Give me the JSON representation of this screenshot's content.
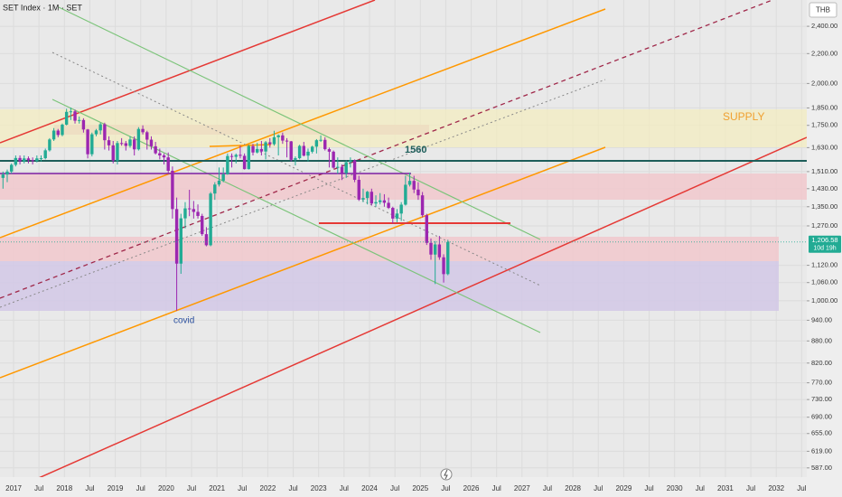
{
  "chart_data": {
    "type": "candlestick",
    "title": "SET Index · 1M · SET",
    "currency": "THB",
    "log_scale": true,
    "grid": true,
    "up_color": "#22ab94",
    "down_color": "#9c27b0",
    "x": [
      "2016-10",
      "2016-11",
      "2016-12",
      "2017-01",
      "2017-02",
      "2017-03",
      "2017-04",
      "2017-05",
      "2017-06",
      "2017-07",
      "2017-08",
      "2017-09",
      "2017-10",
      "2017-11",
      "2017-12",
      "2018-01",
      "2018-02",
      "2018-03",
      "2018-04",
      "2018-05",
      "2018-06",
      "2018-07",
      "2018-08",
      "2018-09",
      "2018-10",
      "2018-11",
      "2018-12",
      "2019-01",
      "2019-02",
      "2019-03",
      "2019-04",
      "2019-05",
      "2019-06",
      "2019-07",
      "2019-08",
      "2019-09",
      "2019-10",
      "2019-11",
      "2019-12",
      "2020-01",
      "2020-02",
      "2020-03",
      "2020-04",
      "2020-05",
      "2020-06",
      "2020-07",
      "2020-08",
      "2020-09",
      "2020-10",
      "2020-11",
      "2020-12",
      "2021-01",
      "2021-02",
      "2021-03",
      "2021-04",
      "2021-05",
      "2021-06",
      "2021-07",
      "2021-08",
      "2021-09",
      "2021-10",
      "2021-11",
      "2021-12",
      "2022-01",
      "2022-02",
      "2022-03",
      "2022-04",
      "2022-05",
      "2022-06",
      "2022-07",
      "2022-08",
      "2022-09",
      "2022-10",
      "2022-11",
      "2022-12",
      "2023-01",
      "2023-02",
      "2023-03",
      "2023-04",
      "2023-05",
      "2023-06",
      "2023-07",
      "2023-08",
      "2023-09",
      "2023-10",
      "2023-11",
      "2023-12",
      "2024-01",
      "2024-02",
      "2024-03",
      "2024-04",
      "2024-05",
      "2024-06",
      "2024-07",
      "2024-08",
      "2024-09",
      "2024-10",
      "2024-11",
      "2024-12",
      "2025-01",
      "2025-02",
      "2025-03",
      "2025-04",
      "2025-05",
      "2025-06",
      "2025-07"
    ],
    "open": [
      1480,
      1496,
      1510,
      1543,
      1577,
      1560,
      1575,
      1566,
      1562,
      1575,
      1576,
      1616,
      1673,
      1721,
      1697,
      1754,
      1827,
      1830,
      1776,
      1780,
      1727,
      1596,
      1701,
      1722,
      1756,
      1669,
      1642,
      1564,
      1654,
      1653,
      1639,
      1673,
      1621,
      1730,
      1712,
      1672,
      1637,
      1601,
      1590,
      1580,
      1514,
      1340,
      1126,
      1301,
      1343,
      1340,
      1328,
      1311,
      1237,
      1194,
      1408,
      1449,
      1467,
      1497,
      1587,
      1583,
      1593,
      1588,
      1522,
      1638,
      1605,
      1623,
      1610,
      1658,
      1648,
      1685,
      1695,
      1667,
      1663,
      1568,
      1576,
      1639,
      1589,
      1609,
      1635,
      1669,
      1671,
      1622,
      1609,
      1529,
      1533,
      1503,
      1556,
      1565,
      1471,
      1381,
      1388,
      1416,
      1364,
      1370,
      1378,
      1367,
      1345,
      1300,
      1321,
      1359,
      1448,
      1466,
      1426,
      1400,
      1314,
      1203,
      1159,
      1197,
      1149,
      1089
    ],
    "high": [
      1510,
      1520,
      1550,
      1590,
      1590,
      1590,
      1585,
      1580,
      1590,
      1590,
      1625,
      1680,
      1735,
      1730,
      1760,
      1845,
      1852,
      1840,
      1800,
      1790,
      1730,
      1710,
      1730,
      1765,
      1765,
      1690,
      1665,
      1665,
      1680,
      1665,
      1690,
      1690,
      1740,
      1750,
      1720,
      1690,
      1660,
      1625,
      1600,
      1605,
      1535,
      1390,
      1320,
      1370,
      1425,
      1375,
      1360,
      1320,
      1265,
      1415,
      1460,
      1530,
      1530,
      1600,
      1600,
      1600,
      1640,
      1600,
      1645,
      1650,
      1655,
      1665,
      1665,
      1680,
      1720,
      1700,
      1710,
      1680,
      1665,
      1585,
      1645,
      1660,
      1625,
      1640,
      1675,
      1695,
      1685,
      1630,
      1615,
      1580,
      1545,
      1565,
      1580,
      1570,
      1490,
      1430,
      1420,
      1430,
      1400,
      1410,
      1405,
      1390,
      1350,
      1340,
      1370,
      1490,
      1505,
      1490,
      1460,
      1415,
      1320,
      1220,
      1210,
      1230,
      1160,
      1215
    ],
    "low": [
      1430,
      1460,
      1500,
      1535,
      1545,
      1550,
      1550,
      1545,
      1555,
      1560,
      1570,
      1610,
      1665,
      1685,
      1690,
      1750,
      1780,
      1760,
      1760,
      1710,
      1575,
      1585,
      1690,
      1700,
      1620,
      1615,
      1550,
      1545,
      1640,
      1615,
      1630,
      1590,
      1615,
      1700,
      1620,
      1620,
      1595,
      1570,
      1545,
      1500,
      1300,
      969,
      1090,
      1260,
      1310,
      1300,
      1300,
      1230,
      1190,
      1190,
      1380,
      1440,
      1460,
      1495,
      1530,
      1550,
      1575,
      1520,
      1520,
      1590,
      1600,
      1590,
      1570,
      1630,
      1640,
      1590,
      1650,
      1580,
      1560,
      1540,
      1570,
      1585,
      1560,
      1600,
      1600,
      1660,
      1615,
      1530,
      1525,
      1500,
      1470,
      1480,
      1530,
      1460,
      1375,
      1370,
      1360,
      1355,
      1350,
      1360,
      1350,
      1340,
      1280,
      1285,
      1290,
      1355,
      1440,
      1410,
      1380,
      1305,
      1195,
      1140,
      1055,
      1140,
      1060,
      1085
    ],
    "close": [
      1496,
      1510,
      1543,
      1577,
      1560,
      1575,
      1566,
      1562,
      1575,
      1576,
      1616,
      1673,
      1721,
      1697,
      1754,
      1827,
      1830,
      1776,
      1780,
      1727,
      1596,
      1701,
      1722,
      1756,
      1669,
      1642,
      1564,
      1654,
      1653,
      1639,
      1673,
      1621,
      1730,
      1712,
      1672,
      1637,
      1601,
      1590,
      1580,
      1514,
      1340,
      1126,
      1301,
      1343,
      1340,
      1328,
      1311,
      1237,
      1194,
      1408,
      1449,
      1467,
      1497,
      1587,
      1583,
      1593,
      1588,
      1522,
      1638,
      1605,
      1623,
      1610,
      1658,
      1648,
      1685,
      1695,
      1667,
      1663,
      1568,
      1576,
      1639,
      1589,
      1609,
      1635,
      1669,
      1671,
      1622,
      1609,
      1529,
      1533,
      1503,
      1556,
      1565,
      1471,
      1381,
      1388,
      1416,
      1364,
      1370,
      1378,
      1367,
      1345,
      1300,
      1321,
      1359,
      1448,
      1466,
      1426,
      1400,
      1314,
      1203,
      1159,
      1197,
      1149,
      1089,
      1206.58
    ],
    "ylim": [
      570,
      2610
    ],
    "yticks": [
      {
        "value": 2400,
        "label": "2,400.00"
      },
      {
        "value": 2200,
        "label": "2,200.00"
      },
      {
        "value": 2000,
        "label": "2,000.00"
      },
      {
        "value": 1850,
        "label": "1,850.00"
      },
      {
        "value": 1750,
        "label": "1,750.00"
      },
      {
        "value": 1630,
        "label": "1,630.00"
      },
      {
        "value": 1510,
        "label": "1,510.00"
      },
      {
        "value": 1430,
        "label": "1,430.00"
      },
      {
        "value": 1350,
        "label": "1,350.00"
      },
      {
        "value": 1270,
        "label": "1,270.00"
      },
      {
        "value": 1120,
        "label": "1,120.00"
      },
      {
        "value": 1060,
        "label": "1,060.00"
      },
      {
        "value": 1000,
        "label": "1,000.00"
      },
      {
        "value": 940,
        "label": "940.00"
      },
      {
        "value": 880,
        "label": "880.00"
      },
      {
        "value": 820,
        "label": "820.00"
      },
      {
        "value": 770,
        "label": "770.00"
      },
      {
        "value": 730,
        "label": "730.00"
      },
      {
        "value": 690,
        "label": "690.00"
      },
      {
        "value": 655,
        "label": "655.00"
      },
      {
        "value": 619,
        "label": "619.00"
      },
      {
        "value": 587,
        "label": "587.00"
      }
    ],
    "xlim": [
      2016.733,
      2032.6
    ],
    "xticks": [
      2017,
      {
        "value": 2017.5,
        "label": "Jul"
      },
      2018,
      {
        "value": 2018.5,
        "label": "Jul"
      },
      2019,
      {
        "value": 2019.5,
        "label": "Jul"
      },
      2020,
      {
        "value": 2020.5,
        "label": "Jul"
      },
      2021,
      {
        "value": 2021.5,
        "label": "Jul"
      },
      2022,
      {
        "value": 2022.5,
        "label": "Jul"
      },
      2023,
      {
        "value": 2023.5,
        "label": "Jul"
      },
      2024,
      {
        "value": 2024.5,
        "label": "Jul"
      },
      2025,
      {
        "value": 2025.5,
        "label": "Jul"
      },
      2026,
      {
        "value": 2026.5,
        "label": "Jul"
      },
      2027,
      {
        "value": 2027.5,
        "label": "Jul"
      },
      2028,
      {
        "value": 2028.5,
        "label": "Jul"
      },
      2029,
      {
        "value": 2029.5,
        "label": "Jul"
      },
      2030,
      {
        "value": 2030.5,
        "label": "Jul"
      },
      2031,
      {
        "value": 2031.5,
        "label": "Jul"
      },
      2032,
      {
        "value": 2032.5,
        "label": "Jul"
      }
    ],
    "last_price": {
      "value": 1206.58,
      "label": "1,206.58"
    },
    "countdown": "10d 19h",
    "annotations": [
      "1560",
      "covid",
      "SUPPLY"
    ]
  }
}
